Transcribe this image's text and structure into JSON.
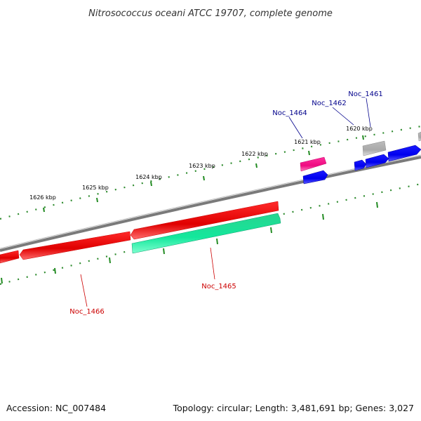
{
  "title": "Nitrosococcus oceani ATCC 19707, complete genome",
  "footer": {
    "accession": "Accession: NC_007484",
    "topology": "Topology: circular; Length: 3,481,691 bp; Genes: 3,027"
  },
  "colors": {
    "backbone": "#808080",
    "tick": "#228B22",
    "forward_gene": "#0000ff",
    "forward_label": "#00008b",
    "reverse_gene": "#ff0000",
    "reverse_label": "#cc0000",
    "teal_gene": "#19f0a0",
    "pink_gene": "#ff1493",
    "grey_gene": "#b4b4b4"
  },
  "kbp_labels": [
    "1620 kbp",
    "1621 kbp",
    "1622 kbp",
    "1623 kbp",
    "1624 kbp",
    "1625 kbp",
    "1626 kbp"
  ],
  "gene_labels": {
    "noc_1461": "Noc_1461",
    "noc_1462": "Noc_1462",
    "noc_1464": "Noc_1464",
    "noc_1465": "Noc_1465",
    "noc_1466": "Noc_1466"
  }
}
